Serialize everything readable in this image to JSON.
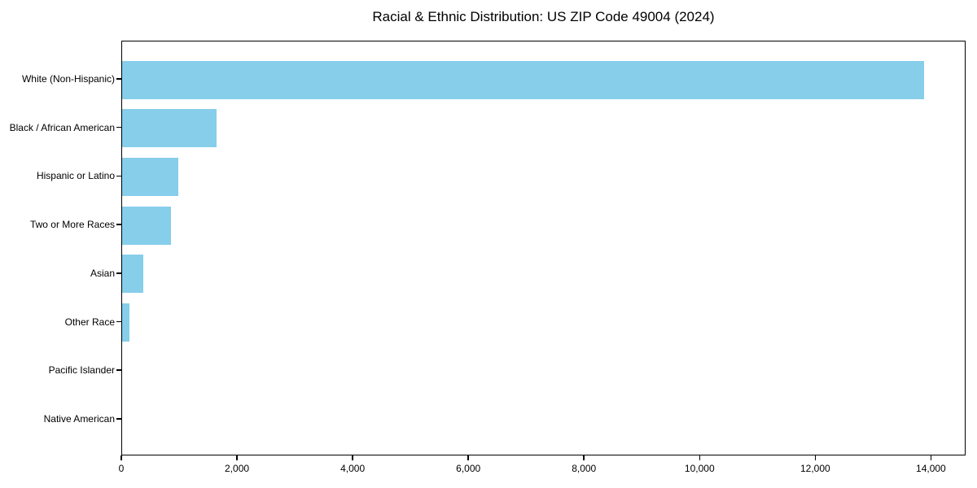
{
  "chart_data": {
    "type": "bar",
    "orientation": "horizontal",
    "title": "Racial & Ethnic Distribution: US ZIP Code 49004 (2024)",
    "categories": [
      "White (Non-Hispanic)",
      "Black / African American",
      "Hispanic or Latino",
      "Two or More Races",
      "Asian",
      "Other Race",
      "Pacific Islander",
      "Native American"
    ],
    "values": [
      13900,
      1630,
      970,
      850,
      365,
      130,
      0,
      0
    ],
    "xlabel": "",
    "ylabel": "",
    "xlim": [
      0,
      14600
    ],
    "x_ticks": [
      0,
      2000,
      4000,
      6000,
      8000,
      10000,
      12000,
      14000
    ],
    "x_tick_labels": [
      "0",
      "2,000",
      "4,000",
      "6,000",
      "8,000",
      "10,000",
      "12,000",
      "14,000"
    ],
    "grid": false,
    "legend": "none",
    "bar_color": "#87CEEB",
    "frame_color": "#000000",
    "text_color": "#000000",
    "background_color": "#ffffff"
  }
}
